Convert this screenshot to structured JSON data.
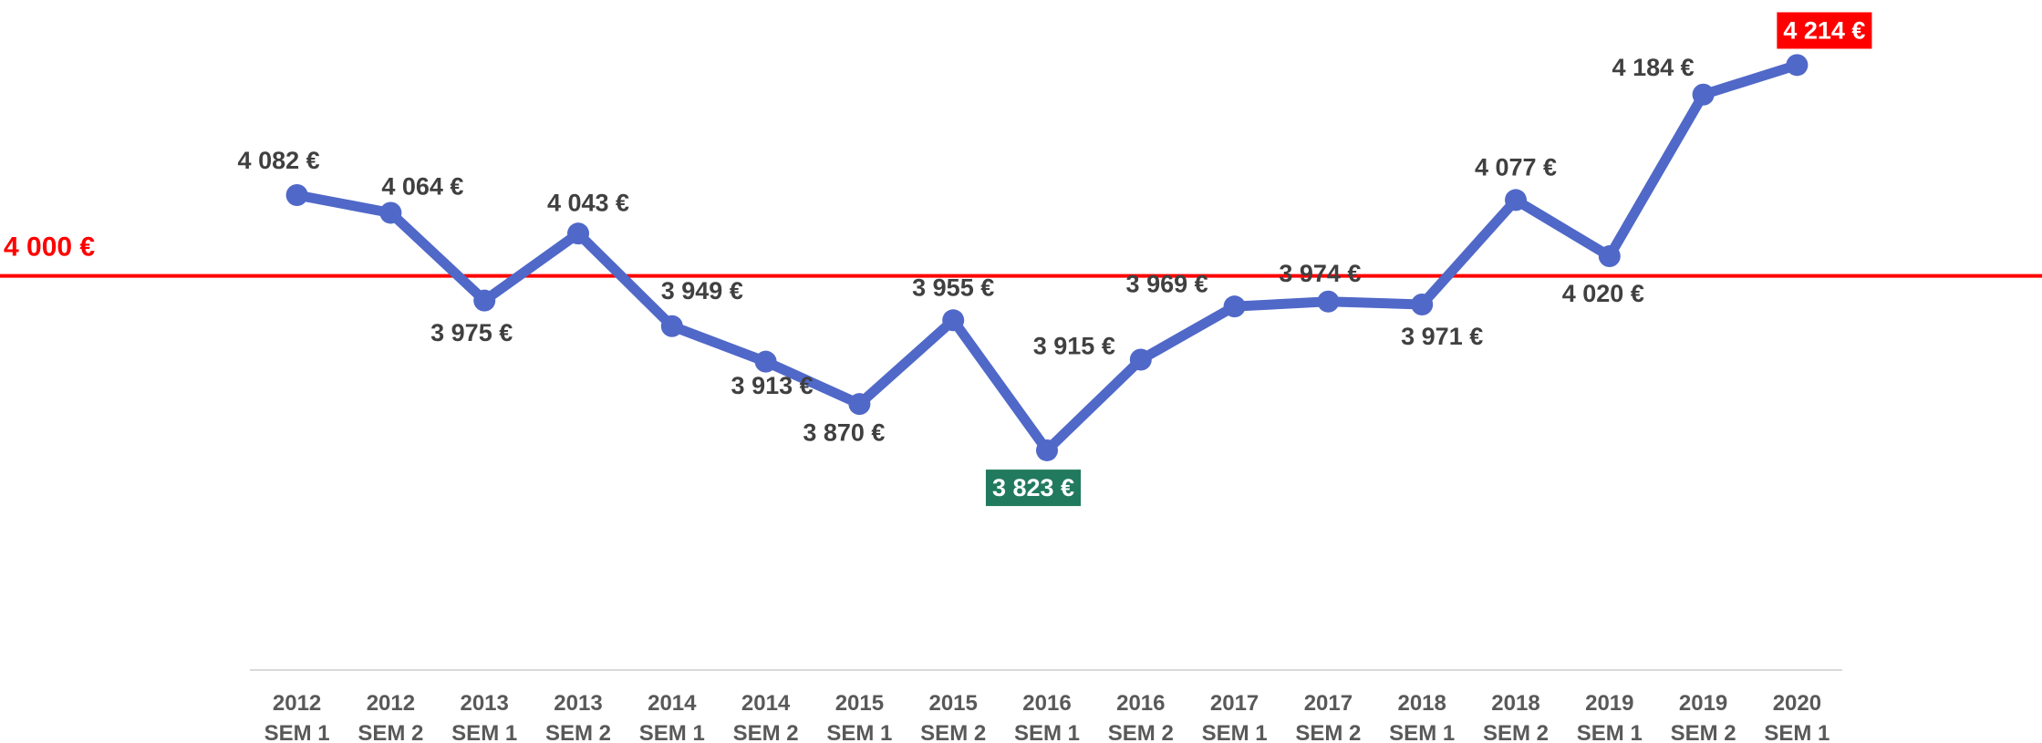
{
  "chart_data": {
    "type": "line",
    "categories": [
      "2012 SEM 1",
      "2012 SEM 2",
      "2013 SEM 1",
      "2013 SEM 2",
      "2014 SEM 1",
      "2014 SEM 2",
      "2015 SEM 1",
      "2015 SEM 2",
      "2016 SEM 1",
      "2016 SEM 2",
      "2017 SEM 1",
      "2017 SEM 2",
      "2018 SEM 1",
      "2018 SEM 2",
      "2019 SEM 1",
      "2019 SEM 2",
      "2020 SEM 1"
    ],
    "series": [
      {
        "color": "#5068c8",
        "values": [
          4082,
          4064,
          3975,
          4043,
          3949,
          3913,
          3870,
          3955,
          3823,
          3915,
          3969,
          3974,
          3971,
          4077,
          4020,
          4184,
          4214
        ],
        "value_labels": [
          "4 082 €",
          "4 064 €",
          "3 975 €",
          "4 043 €",
          "3 949 €",
          "3 913 €",
          "3 870 €",
          "3 955 €",
          "3 823 €",
          "3 915 €",
          "3 969 €",
          "3 974 €",
          "3 971 €",
          "4 077 €",
          "4 020 €",
          "4 184 €",
          "4 214 €"
        ]
      }
    ],
    "ylim": [
      3600,
      4280
    ],
    "reference_line": {
      "value": 4000,
      "label": "4 000 €",
      "color": "#ff0000"
    },
    "highlight": {
      "min": "#217a5e",
      "max": "#ff0000"
    }
  }
}
